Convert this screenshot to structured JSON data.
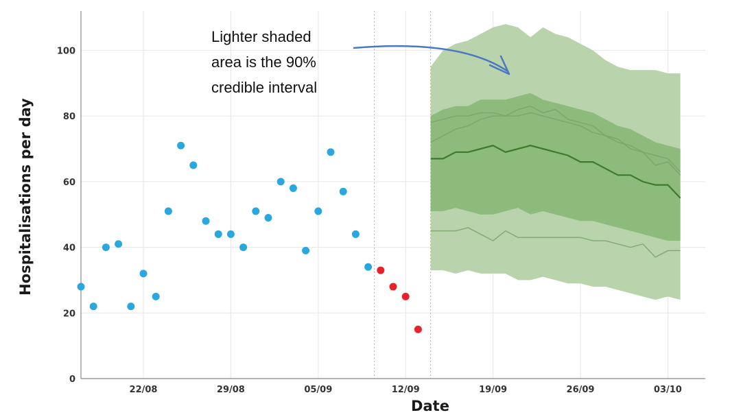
{
  "chart_data": {
    "type": "scatter",
    "xlabel": "Date",
    "ylabel": "Hospitalisations per day",
    "ylim": [
      0,
      112
    ],
    "x_ticks": [
      "22/08",
      "29/08",
      "05/09",
      "12/09",
      "19/09",
      "26/09",
      "03/10"
    ],
    "x_tick_positions": [
      5,
      12,
      19,
      26,
      33,
      40,
      47
    ],
    "y_ticks": [
      0,
      20,
      40,
      60,
      80,
      100
    ],
    "grid": true,
    "legend": "none",
    "annotation": {
      "lines": [
        "Lighter shaded",
        "area is the 90%",
        "credible interval"
      ]
    },
    "series": [
      {
        "color": "#2aa7df",
        "x": [
          0,
          1,
          2,
          3,
          4,
          5,
          6,
          7,
          8,
          9,
          10,
          11,
          12,
          13,
          14,
          15,
          16,
          17,
          18,
          19,
          20,
          21,
          22,
          23
        ],
        "y": [
          28,
          22,
          40,
          41,
          22,
          32,
          25,
          51,
          71,
          65,
          48,
          44,
          44,
          40,
          51,
          49,
          60,
          58,
          39,
          51,
          69,
          57,
          44,
          34
        ]
      },
      {
        "color": "#e8212b",
        "x": [
          24,
          25,
          26,
          27
        ],
        "y": [
          33,
          28,
          25,
          15
        ]
      }
    ],
    "forecast": {
      "x": [
        28,
        29,
        30,
        31,
        32,
        33,
        34,
        35,
        36,
        37,
        38,
        39,
        40,
        41,
        42,
        43,
        44,
        45,
        46,
        47,
        48
      ],
      "median": [
        67,
        67,
        69,
        69,
        70,
        71,
        69,
        70,
        71,
        70,
        69,
        68,
        66,
        66,
        64,
        62,
        62,
        60,
        59,
        59,
        55
      ],
      "band_50": {
        "lower": [
          51,
          51,
          52,
          51,
          50,
          50,
          51,
          52,
          50,
          51,
          50,
          49,
          48,
          48,
          47,
          46,
          45,
          44,
          43,
          42,
          42
        ],
        "upper": [
          80,
          82,
          83,
          83,
          85,
          85,
          85,
          86,
          87,
          85,
          84,
          83,
          82,
          81,
          79,
          77,
          76,
          74,
          72,
          71,
          70
        ]
      },
      "band_90": {
        "lower": [
          33,
          33,
          32,
          33,
          32,
          32,
          32,
          30,
          30,
          31,
          30,
          29,
          29,
          28,
          28,
          27,
          26,
          25,
          24,
          25,
          24
        ],
        "upper": [
          95,
          100,
          102,
          103,
          105,
          107,
          108,
          107,
          104,
          107,
          105,
          104,
          102,
          100,
          97,
          95,
          94,
          94,
          94,
          93,
          93
        ]
      },
      "sample_paths": [
        [
          78,
          79,
          80,
          80,
          81,
          81,
          80,
          82,
          83,
          81,
          82,
          79,
          78,
          77,
          74,
          73,
          70,
          69,
          68,
          67,
          63
        ],
        [
          72,
          74,
          76,
          77,
          79,
          80,
          80,
          80,
          81,
          80,
          79,
          78,
          77,
          75,
          74,
          72,
          71,
          69,
          65,
          66,
          62
        ],
        [
          45,
          45,
          45,
          46,
          44,
          42,
          45,
          43,
          43,
          43,
          43,
          43,
          43,
          42,
          42,
          41,
          40,
          41,
          37,
          39,
          39
        ]
      ]
    },
    "colors": {
      "band_90": "#b9d4ac",
      "band_50": "#8dbb7b",
      "median": "#3d7a2d",
      "sample_path": "#7aa36c",
      "gridline": "#e6e6e6",
      "axis": "#888888",
      "arrow": "#4a78c2"
    }
  }
}
